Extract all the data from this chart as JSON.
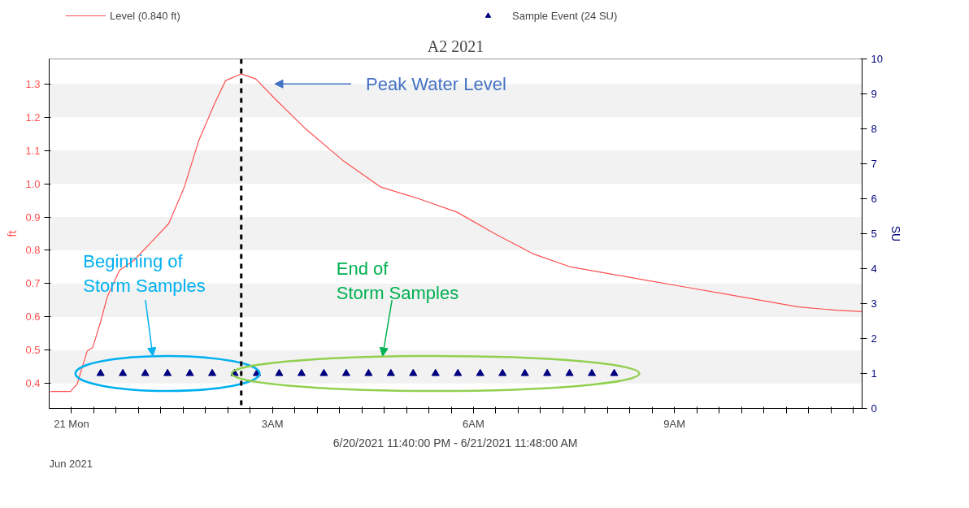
{
  "chart_data": {
    "type": "line",
    "title": "A2 2021",
    "xlabel": "6/20/2021 11:40:00 PM - 6/21/2021 11:48:00 AM",
    "ylabel": "ft",
    "y2label": "SU",
    "x": [
      "2021-06-20T23:41",
      "2021-06-20T23:59",
      "2021-06-21T00:05",
      "2021-06-21T00:14",
      "2021-06-21T00:19",
      "2021-06-21T00:26",
      "2021-06-21T00:32",
      "2021-06-21T00:43",
      "2021-06-21T00:56",
      "2021-06-21T01:13",
      "2021-06-21T01:27",
      "2021-06-21T01:41",
      "2021-06-21T01:54",
      "2021-06-21T02:08",
      "2021-06-21T02:18",
      "2021-06-21T02:32",
      "2021-06-21T02:45",
      "2021-06-21T03:02",
      "2021-06-21T03:29",
      "2021-06-21T04:03",
      "2021-06-21T04:37",
      "2021-06-21T05:11",
      "2021-06-21T05:45",
      "2021-06-21T06:19",
      "2021-06-21T06:53",
      "2021-06-21T07:27",
      "2021-06-21T08:01",
      "2021-06-21T08:35",
      "2021-06-21T09:09",
      "2021-06-21T09:43",
      "2021-06-21T10:17",
      "2021-06-21T10:51",
      "2021-06-21T11:25",
      "2021-06-21T11:48"
    ],
    "series": [
      {
        "name": "Level (0.840 ft)",
        "color": "#ff5050",
        "values": [
          0.376,
          0.376,
          0.398,
          0.497,
          0.508,
          0.585,
          0.66,
          0.74,
          0.77,
          0.83,
          0.88,
          0.99,
          1.13,
          1.24,
          1.31,
          1.33,
          1.315,
          1.256,
          1.167,
          1.07,
          0.99,
          0.955,
          0.915,
          0.85,
          0.79,
          0.75,
          0.73,
          0.71,
          0.69,
          0.67,
          0.65,
          0.63,
          0.62,
          0.616
        ]
      },
      {
        "name": "Sample Event (24 SU)",
        "type": "scatter",
        "marker": "triangle",
        "axis": "y2",
        "color": "#000080",
        "x": [
          "2021-06-21T00:26",
          "2021-06-21T00:46",
          "2021-06-21T01:06",
          "2021-06-21T01:26",
          "2021-06-21T01:46",
          "2021-06-21T02:06",
          "2021-06-21T02:26",
          "2021-06-21T02:46",
          "2021-06-21T03:06",
          "2021-06-21T03:26",
          "2021-06-21T03:46",
          "2021-06-21T04:06",
          "2021-06-21T04:26",
          "2021-06-21T04:46",
          "2021-06-21T05:06",
          "2021-06-21T05:26",
          "2021-06-21T05:46",
          "2021-06-21T06:06",
          "2021-06-21T06:26",
          "2021-06-21T06:46",
          "2021-06-21T07:06",
          "2021-06-21T07:26",
          "2021-06-21T07:46",
          "2021-06-21T08:06"
        ],
        "values": [
          1,
          1,
          1,
          1,
          1,
          1,
          1,
          1,
          1,
          1,
          1,
          1,
          1,
          1,
          1,
          1,
          1,
          1,
          1,
          1,
          1,
          1,
          1,
          1
        ]
      }
    ],
    "xlim": [
      "2021-06-20T23:40",
      "2021-06-21T11:48"
    ],
    "xticks": [
      {
        "value": "2021-06-21T00:00",
        "label": "21 Mon"
      },
      {
        "value": "2021-06-21T00:20",
        "label": null
      },
      {
        "value": "2021-06-21T00:40",
        "label": null
      },
      {
        "value": "2021-06-21T01:00",
        "label": null
      },
      {
        "value": "2021-06-21T01:20",
        "label": null
      },
      {
        "value": "2021-06-21T01:40",
        "label": null
      },
      {
        "value": "2021-06-21T02:00",
        "label": null
      },
      {
        "value": "2021-06-21T02:20",
        "label": null
      },
      {
        "value": "2021-06-21T02:40",
        "label": null
      },
      {
        "value": "2021-06-21T03:00",
        "label": "3AM"
      },
      {
        "value": "2021-06-21T03:20",
        "label": null
      },
      {
        "value": "2021-06-21T03:40",
        "label": null
      },
      {
        "value": "2021-06-21T04:00",
        "label": null
      },
      {
        "value": "2021-06-21T04:20",
        "label": null
      },
      {
        "value": "2021-06-21T04:40",
        "label": null
      },
      {
        "value": "2021-06-21T05:00",
        "label": null
      },
      {
        "value": "2021-06-21T05:20",
        "label": null
      },
      {
        "value": "2021-06-21T05:40",
        "label": null
      },
      {
        "value": "2021-06-21T06:00",
        "label": "6AM"
      },
      {
        "value": "2021-06-21T06:20",
        "label": null
      },
      {
        "value": "2021-06-21T06:40",
        "label": null
      },
      {
        "value": "2021-06-21T07:00",
        "label": null
      },
      {
        "value": "2021-06-21T07:20",
        "label": null
      },
      {
        "value": "2021-06-21T07:40",
        "label": null
      },
      {
        "value": "2021-06-21T08:00",
        "label": null
      },
      {
        "value": "2021-06-21T08:20",
        "label": null
      },
      {
        "value": "2021-06-21T08:40",
        "label": null
      },
      {
        "value": "2021-06-21T09:00",
        "label": "9AM"
      },
      {
        "value": "2021-06-21T09:20",
        "label": null
      },
      {
        "value": "2021-06-21T09:40",
        "label": null
      },
      {
        "value": "2021-06-21T10:00",
        "label": null
      },
      {
        "value": "2021-06-21T10:20",
        "label": null
      },
      {
        "value": "2021-06-21T10:40",
        "label": null
      },
      {
        "value": "2021-06-21T11:00",
        "label": null
      },
      {
        "value": "2021-06-21T11:20",
        "label": null
      },
      {
        "value": "2021-06-21T11:40",
        "label": null
      }
    ],
    "ylim": [
      0.325,
      1.375
    ],
    "yticks": [
      0.4,
      0.5,
      0.6,
      0.7,
      0.8,
      0.9,
      {
        "value": 1,
        "label": "1.0"
      },
      1.1,
      1.2,
      1.3
    ],
    "y2lim": [
      0,
      10
    ],
    "y2ticks": [
      0,
      1,
      2,
      3,
      4,
      5,
      6,
      7,
      8,
      9,
      10
    ],
    "ref_lines": [
      {
        "axis": "x",
        "value": "2021-06-21T02:32",
        "label": null,
        "color": "#000000",
        "line_style": "dashed"
      }
    ],
    "annotations": [
      "Peak Water Level",
      "Beginning of Storm Samples",
      "End of Storm Samples",
      "Jun 2021"
    ],
    "legend": "top",
    "line_style": "solid"
  }
}
